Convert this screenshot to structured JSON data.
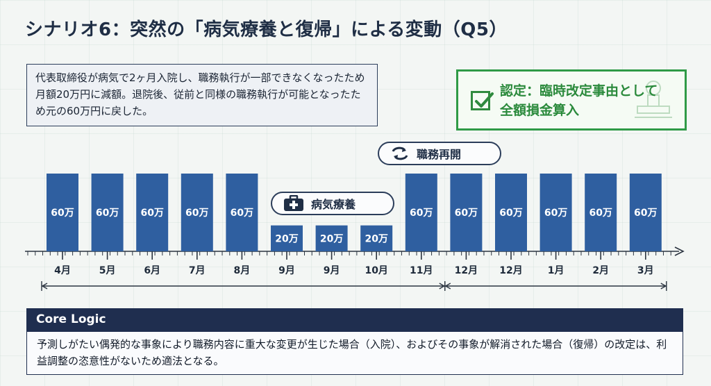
{
  "title": "シナリオ6：突然の「病気療養と復帰」による変動（Q5）",
  "description": "代表取締役が病気で2ヶ月入院し、職務執行が一部できなくなったため月額20万円に減額。退院後、従前と同様の職務執行が可能となったため元の60万円に戻した。",
  "stamp": {
    "line1": "認定：臨時改定事由として",
    "line2": "全額損金算入",
    "color": "#2f9a46",
    "icon": "check-box-icon"
  },
  "pills": {
    "resume": {
      "label": "職務再開",
      "icon": "swap-arrows-icon"
    },
    "sick": {
      "label": "病気療養",
      "icon": "medical-kit-icon"
    }
  },
  "chart_data": {
    "type": "bar",
    "categories": [
      "4月",
      "5月",
      "6月",
      "7月",
      "8月",
      "9月",
      "9月",
      "10月",
      "11月",
      "12月",
      "12月",
      "1月",
      "2月",
      "3月"
    ],
    "values": [
      60,
      60,
      60,
      60,
      60,
      20,
      20,
      20,
      60,
      60,
      60,
      60,
      60,
      60
    ],
    "value_labels": [
      "60万",
      "60万",
      "60万",
      "60万",
      "60万",
      "20万",
      "20万",
      "20万",
      "60万",
      "60万",
      "60万",
      "60万",
      "60万",
      "60万"
    ],
    "unit": "万",
    "bar_color": "#2f5fa0",
    "ylim": [
      0,
      60
    ],
    "periods": [
      {
        "from_index": 0,
        "to_index": 8
      },
      {
        "from_index": 8,
        "to_index": 13
      }
    ]
  },
  "core_logic": {
    "heading": "Core Logic",
    "body": "予測しがたい偶発的な事象により職務内容に重大な変更が生じた場合（入院）、およびその事象が解消された場合（復帰）の改定は、利益調整の恣意性がないため適法となる。"
  }
}
